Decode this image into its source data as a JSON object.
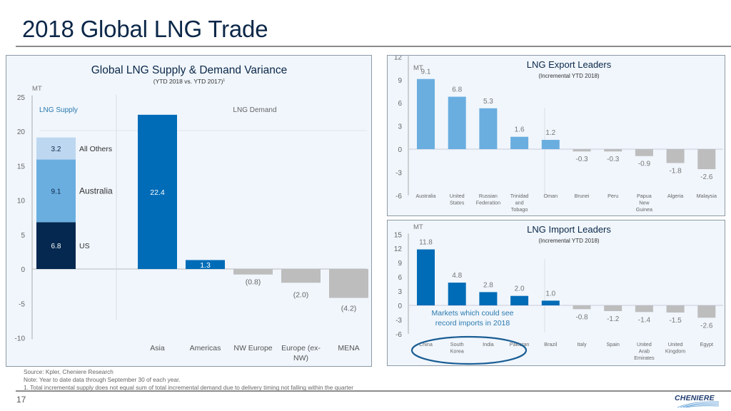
{
  "slide": {
    "title": "2018 Global LNG Trade",
    "page_number": "17",
    "logo_text": "CHENIERE",
    "footnotes": [
      "Source: Kpler, Cheniere Research",
      "Note: Year to date data through September 30 of each year.",
      "1. Total incremental supply does not equal sum of total incremental demand due to delivery timing not falling within the quarter"
    ]
  },
  "colors": {
    "title": "#0b2748",
    "us": "#04284f",
    "australia": "#6aaee0",
    "all_others": "#bed7f0",
    "demand_positive": "#006cb7",
    "negative": "#bdbdbd",
    "export_positive": "#6aaee0",
    "import_positive": "#006cb7",
    "annotation": "#2c79ae",
    "panel_bg": "#f0f6fc"
  },
  "chart_data": [
    {
      "type": "bar",
      "title": "Global LNG Supply & Demand Variance",
      "subtitle": "(YTD 2018 vs. YTD 2017)",
      "subtitle_footnote_mark": "1",
      "ylabel": "MT",
      "ylim": [
        -10,
        25
      ],
      "yticks": [
        25,
        20,
        15,
        10,
        5,
        0,
        -5,
        -10
      ],
      "grid": false,
      "section_labels": {
        "supply": "LNG Supply",
        "demand": "LNG Demand"
      },
      "supply_stack": [
        {
          "name": "US",
          "value": 6.8,
          "label": "6.8"
        },
        {
          "name": "Australia",
          "value": 9.1,
          "label": "9.1"
        },
        {
          "name": "All Others",
          "value": 3.2,
          "label": "3.2"
        }
      ],
      "categories": [
        "Asia",
        "Americas",
        "NW Europe",
        "Europe (ex-NW)",
        "MENA"
      ],
      "category_lines": [
        [
          "Asia"
        ],
        [
          "Americas"
        ],
        [
          "NW Europe"
        ],
        [
          "Europe (ex-",
          "NW)"
        ],
        [
          "MENA"
        ]
      ],
      "values": [
        22.4,
        1.3,
        -0.8,
        -2.0,
        -4.2
      ],
      "value_labels": [
        "22.4",
        "1.3",
        "(0.8)",
        "(2.0)",
        "(4.2)"
      ]
    },
    {
      "type": "bar",
      "title": "LNG Export Leaders",
      "subtitle": "(Incremental YTD 2018)",
      "ylabel": "MT",
      "ylim": [
        -6,
        12
      ],
      "yticks": [
        12,
        9,
        6,
        3,
        0,
        -3,
        -6
      ],
      "grid": false,
      "categories": [
        "Australia",
        "United States",
        "Russian Federation",
        "Trinidad and Tobago",
        "Oman",
        "Brunei",
        "Peru",
        "Papua New Guinea",
        "Algeria",
        "Malaysia"
      ],
      "category_lines": [
        [
          "Australia"
        ],
        [
          "United",
          "States"
        ],
        [
          "Russian",
          "Federation"
        ],
        [
          "Trinidad",
          "and",
          "Tobago"
        ],
        [
          "Oman"
        ],
        [
          "Brunei"
        ],
        [
          "Peru"
        ],
        [
          "Papua",
          "New",
          "Guinea"
        ],
        [
          "Algeria"
        ],
        [
          "Malaysia"
        ]
      ],
      "values": [
        9.1,
        6.8,
        5.3,
        1.6,
        1.2,
        -0.3,
        -0.3,
        -0.9,
        -1.8,
        -2.6
      ],
      "value_labels": [
        "9.1",
        "6.8",
        "5.3",
        "1.6",
        "1.2",
        "-0.3",
        "-0.3",
        "-0.9",
        "-1.8",
        "-2.6"
      ]
    },
    {
      "type": "bar",
      "title": "LNG Import Leaders",
      "subtitle": "(Incremental YTD 2018)",
      "ylabel": "MT",
      "ylim": [
        -6,
        15
      ],
      "yticks": [
        15,
        12,
        9,
        6,
        3,
        0,
        -3,
        -6
      ],
      "grid": false,
      "categories": [
        "China",
        "South Korea",
        "India",
        "Pakistan",
        "Brazil",
        "Italy",
        "Spain",
        "United Arab Emirates",
        "United Kingdom",
        "Egypt"
      ],
      "category_lines": [
        [
          "China"
        ],
        [
          "South",
          "Korea"
        ],
        [
          "India"
        ],
        [
          "Pakistan"
        ],
        [
          "Brazil"
        ],
        [
          "Italy"
        ],
        [
          "Spain"
        ],
        [
          "United",
          "Arab",
          "Emirates"
        ],
        [
          "United",
          "Kingdom"
        ],
        [
          "Egypt"
        ]
      ],
      "values": [
        11.8,
        4.8,
        2.8,
        2.0,
        1.0,
        -0.8,
        -1.2,
        -1.4,
        -1.5,
        -2.6
      ],
      "value_labels": [
        "11.8",
        "4.8",
        "2.8",
        "2.0",
        "1.0",
        "-0.8",
        "-1.2",
        "-1.4",
        "-1.5",
        "-2.6"
      ],
      "annotation": [
        "Markets which could see",
        "record imports in 2018"
      ],
      "highlighted_categories": [
        "China",
        "South Korea",
        "India",
        "Pakistan"
      ]
    }
  ]
}
